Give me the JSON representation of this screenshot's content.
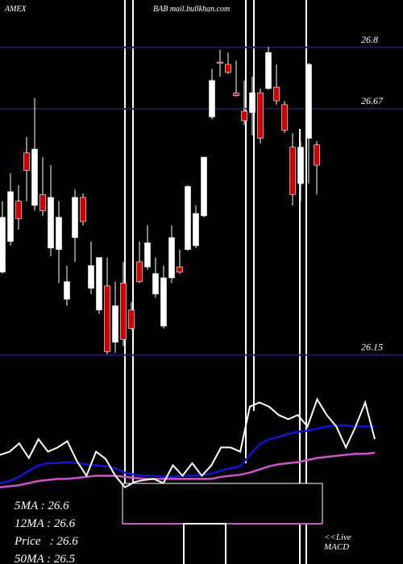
{
  "chart_data": {
    "type": "candlestick",
    "exchange": "AMEX",
    "title": "BAB mail.bullkhan.com",
    "ylim": [
      26.1,
      26.9
    ],
    "yticks": [
      26.8,
      26.67,
      26.15
    ],
    "grid": true,
    "grid_color": "#1c1c5a",
    "up_color": "#ffffff",
    "down_color": "#cc0000",
    "open": [
      26.325,
      26.39,
      26.475,
      26.577,
      26.466,
      26.489,
      26.376,
      26.373,
      26.268,
      26.398,
      26.483,
      26.291,
      26.245,
      26.296,
      26.177,
      26.302,
      26.245,
      26.347,
      26.336,
      26.279,
      26.211,
      26.313,
      26.336,
      26.373,
      26.381,
      26.444,
      26.653,
      26.769,
      26.764,
      26.703,
      26.665,
      26.662,
      26.704,
      26.713,
      26.716,
      26.679,
      26.589,
      26.512,
      26.608,
      26.594
    ],
    "high": [
      26.475,
      26.534,
      26.509,
      26.611,
      26.693,
      26.568,
      26.551,
      26.475,
      26.339,
      26.5,
      26.492,
      26.39,
      26.356,
      26.356,
      26.305,
      26.347,
      26.262,
      26.39,
      26.424,
      26.356,
      26.339,
      26.424,
      26.373,
      26.509,
      26.466,
      26.568,
      26.755,
      26.795,
      26.789,
      26.772,
      26.73,
      26.738,
      26.713,
      26.801,
      26.764,
      26.687,
      26.619,
      26.602,
      26.767,
      26.602
    ],
    "low": [
      26.322,
      26.381,
      26.415,
      26.475,
      26.455,
      26.444,
      26.359,
      26.302,
      26.254,
      26.347,
      26.424,
      26.279,
      26.237,
      26.152,
      26.155,
      26.169,
      26.203,
      26.302,
      26.33,
      26.271,
      26.206,
      26.302,
      26.322,
      26.37,
      26.376,
      26.441,
      26.648,
      26.738,
      26.744,
      26.696,
      26.636,
      26.614,
      26.597,
      26.71,
      26.679,
      26.619,
      26.466,
      26.475,
      26.512,
      26.489
    ],
    "close": [
      26.441,
      26.495,
      26.438,
      26.54,
      26.585,
      26.455,
      26.483,
      26.441,
      26.305,
      26.483,
      26.432,
      26.339,
      26.356,
      26.157,
      26.254,
      26.183,
      26.206,
      26.305,
      26.387,
      26.322,
      26.313,
      26.398,
      26.325,
      26.506,
      26.449,
      26.568,
      26.73,
      26.766,
      26.747,
      26.698,
      26.645,
      26.704,
      26.608,
      26.789,
      26.687,
      26.625,
      26.489,
      26.589,
      26.764,
      26.551
    ],
    "indicator": {
      "ylim": [
        0,
        100
      ],
      "series": [
        {
          "color": "#ffffff",
          "values": [
            35,
            38,
            46,
            32,
            50,
            38,
            42,
            48,
            29,
            15,
            38,
            31,
            15,
            4,
            9,
            11,
            12,
            8,
            25,
            15,
            27,
            15,
            25,
            42,
            42,
            38,
            81,
            85,
            81,
            73,
            69,
            73,
            62,
            88,
            73,
            62,
            42,
            62,
            85,
            50
          ]
        },
        {
          "color": "#1414d2",
          "values": [
            8,
            10,
            14,
            20,
            25,
            27,
            27,
            28,
            27,
            26,
            25,
            24,
            22,
            18,
            16,
            15,
            15,
            14,
            14,
            15,
            15,
            16,
            17,
            20,
            22,
            24,
            35,
            45,
            50,
            52,
            55,
            57,
            58,
            60,
            62,
            63,
            63,
            62,
            62,
            62
          ]
        },
        {
          "color": "#cc55cc",
          "values": [
            4,
            5,
            6,
            8,
            10,
            11,
            12,
            12,
            13,
            14,
            15,
            15,
            15,
            14,
            13,
            12,
            12,
            12,
            12,
            12,
            12,
            12,
            12,
            14,
            15,
            16,
            18,
            21,
            24,
            26,
            27,
            28,
            30,
            32,
            33,
            34,
            35,
            36,
            36,
            37
          ]
        }
      ]
    },
    "indicators": [
      "5MA : 26.6",
      "12MA : 26.6",
      "Price   : 26.6",
      "50MA : 26.5"
    ],
    "macd_label": [
      "<<Live",
      "MACD"
    ]
  }
}
